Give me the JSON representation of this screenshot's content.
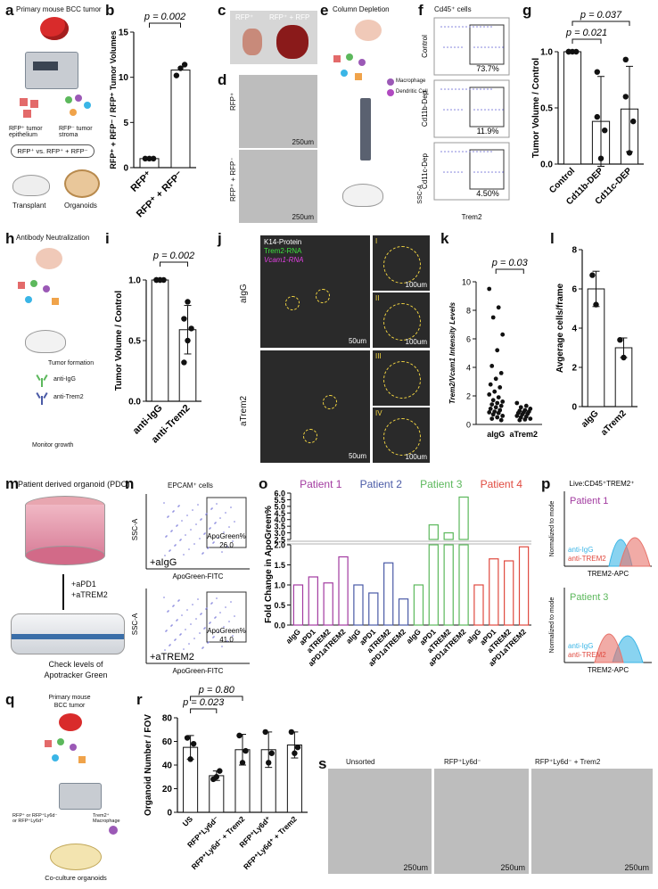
{
  "panels": {
    "a": {
      "letter": "a",
      "title": "Primary mouse BCC tumor",
      "label_epi": "RFP⁺ tumor epithelium",
      "label_stroma": "RFP⁻ tumor stroma",
      "compare": "RFP⁺ vs. RFP⁺ + RFP⁻",
      "transplant": "Transplant",
      "organoids": "Organoids"
    },
    "b": {
      "letter": "b",
      "pvalue": "p = 0.002"
    },
    "c": {
      "letter": "c",
      "label1": "RFP⁺",
      "label2": "RFP⁺ + RFP"
    },
    "d": {
      "letter": "d",
      "row1": "RFP⁺",
      "row2": "RFP⁺ + RFP⁻",
      "scale": "250um"
    },
    "e": {
      "letter": "e",
      "title": "Column Depletion",
      "macrophage": "Macrophage",
      "dendritic": "Dendritic Cell"
    },
    "f": {
      "letter": "f",
      "title": "Cd45⁺ cells",
      "rows": [
        {
          "label": "Control",
          "pct": "73.7%"
        },
        {
          "label": "Cd11b-Dep",
          "pct": "11.9%"
        },
        {
          "label": "Cd11c-Dep",
          "pct": "4.50%"
        }
      ],
      "xaxis": "Trem2",
      "yaxis": "SSC-A"
    },
    "g": {
      "letter": "g",
      "p1": "p = 0.021",
      "p2": "p = 0.037"
    },
    "h": {
      "letter": "h",
      "title": "Antibody Neutralization",
      "tumor_formation": "Tumor formation",
      "anti_igg": "anti-IgG",
      "anti_trem2": "anti-Trem2",
      "monitor": "Monitor growth"
    },
    "i": {
      "letter": "i",
      "pvalue": "p = 0.002"
    },
    "j": {
      "letter": "j",
      "legend1": "K14-Protein",
      "legend2": "Trem2-RNA",
      "legend3": "Vcam1-RNA",
      "row1": "aIgG",
      "row2": "aTrem2",
      "scale1": "50um",
      "scale2": "100um",
      "insets": [
        "I",
        "II",
        "III",
        "IV"
      ]
    },
    "k": {
      "letter": "k",
      "pvalue": "p = 0.03"
    },
    "l": {
      "letter": "l"
    },
    "m": {
      "letter": "m",
      "title": "Patient derived organoid (PDO)",
      "treat1": "+aPD1",
      "treat2": "+aTREM2",
      "check1": "Check levels of",
      "check2": "Apotracker Green"
    },
    "n": {
      "letter": "n",
      "title": "EPCAM⁺ cells",
      "top": {
        "cond": "+aIgG",
        "gate": "ApoGreen%",
        "val": "26.0"
      },
      "bottom": {
        "cond": "+aTREM2",
        "gate": "ApoGreen%",
        "val": "41.0"
      },
      "xaxis": "ApoGreen-FITC",
      "yaxis": "SSC-A"
    },
    "o": {
      "letter": "o",
      "patients": [
        "Patient 1",
        "Patient 2",
        "Patient 3",
        "Patient 4"
      ]
    },
    "p": {
      "letter": "p",
      "title": "Live:CD45⁺TREM2⁺",
      "top_patient": "Patient 1",
      "bottom_patient": "Patient 3",
      "ylabel": "Normalized to mode",
      "xlabel": "TREM2-APC",
      "legend_igg": "anti-IgG",
      "legend_trem2": "anti-TREM2"
    },
    "q": {
      "letter": "q",
      "title1": "Primary mouse",
      "title2": "BCC tumor",
      "label_left": "RFP⁺ or RFP⁺Ly6d⁻ or RFP⁺Ly6d⁺",
      "label_right": "Trem2⁺ Macrophage",
      "coculture": "Co-culture organoids"
    },
    "r": {
      "letter": "r",
      "p1": "p = 0.023",
      "p2": "p = 0.80"
    },
    "s": {
      "letter": "s",
      "labels": [
        "Unsorted",
        "RFP⁺Ly6d⁻",
        "RFP⁺Ly6d⁻ + Trem2"
      ],
      "scale": "250um"
    }
  },
  "chart_data": [
    {
      "id": "b",
      "type": "bar",
      "categories": [
        "RFP⁺",
        "RFP⁺ + RFP⁻"
      ],
      "values": [
        1.0,
        10.8
      ],
      "points": [
        [
          1,
          1,
          1
        ],
        [
          10.2,
          11.0,
          11.4
        ]
      ],
      "ylabel": "RFP⁺ + RFP⁻ / RFP⁺ Tumor Volumes",
      "ylim": [
        0,
        15
      ],
      "yticks": [
        0,
        5,
        10,
        15
      ]
    },
    {
      "id": "g",
      "type": "bar",
      "categories": [
        "Control",
        "Cd11b-DEP",
        "Cd11c-DEP"
      ],
      "values": [
        1.0,
        0.38,
        0.49
      ],
      "errors": [
        0,
        0.4,
        0.38
      ],
      "points": [
        [
          1,
          1,
          1,
          1
        ],
        [
          0.82,
          0.05,
          0.3,
          0.42
        ],
        [
          0.93,
          0.1,
          0.38,
          0.6
        ]
      ],
      "ylabel": "Tumor Volume / Control",
      "ylim": [
        0,
        1.0
      ],
      "yticks": [
        0.0,
        0.5,
        1.0
      ]
    },
    {
      "id": "i",
      "type": "bar",
      "categories": [
        "anti-IgG",
        "anti-Trem2"
      ],
      "values": [
        1.0,
        0.59
      ],
      "errors": [
        0,
        0.2
      ],
      "points": [
        [
          1,
          1,
          1,
          1,
          1
        ],
        [
          0.32,
          0.5,
          0.6,
          0.68,
          0.82
        ]
      ],
      "ylabel": "Tumor Volume / Control",
      "ylim": [
        0,
        1.0
      ],
      "yticks": [
        0.0,
        0.5,
        1.0
      ]
    },
    {
      "id": "k",
      "type": "scatter",
      "categories": [
        "aIgG",
        "aTrem2"
      ],
      "points": [
        [
          9.5,
          8.2,
          7.5,
          6.3,
          5.2,
          4.1,
          3.6,
          3.2,
          2.8,
          2.6,
          2.3,
          2.1,
          1.9,
          1.7,
          1.6,
          1.5,
          1.4,
          1.3,
          1.2,
          1.1,
          1.0,
          0.9,
          0.85,
          0.8,
          0.7,
          0.6,
          0.5,
          0.4,
          0.3
        ],
        [
          1.5,
          1.3,
          1.2,
          1.1,
          1.0,
          0.95,
          0.9,
          0.85,
          0.8,
          0.75,
          0.7,
          0.6,
          0.55,
          0.5,
          0.4,
          0.35,
          0.3
        ]
      ],
      "ylabel": "Trem2/Vcam1 Intensity Levels",
      "ylim": [
        0,
        10
      ],
      "yticks": [
        0,
        2,
        4,
        6,
        8,
        10
      ]
    },
    {
      "id": "l",
      "type": "bar",
      "categories": [
        "aIgG",
        "aTrem2"
      ],
      "values": [
        6.0,
        3.0
      ],
      "errors": [
        0.9,
        0.5
      ],
      "points": [
        [
          6.7,
          5.2
        ],
        [
          3.4,
          2.5
        ]
      ],
      "ylabel": "Avgerage cells/frame",
      "ylim": [
        0,
        8
      ],
      "yticks": [
        0,
        2,
        4,
        6,
        8
      ]
    },
    {
      "id": "o",
      "type": "bar",
      "categories": [
        "aIgG",
        "aPD1",
        "aTREM2",
        "aPD1aTREM2",
        "aIgG",
        "aPD1",
        "aTREM2",
        "aPD1aTREM2",
        "aIgG",
        "aPD1",
        "aTREM2",
        "aPD1aTREM2",
        "aIgG",
        "aPD1",
        "aTREM2",
        "aPD1aTREM2"
      ],
      "values": [
        1.0,
        1.2,
        1.05,
        1.7,
        1.0,
        0.8,
        1.55,
        0.65,
        1.0,
        3.6,
        3.0,
        5.7,
        1.0,
        1.65,
        1.6,
        1.95
      ],
      "colors": [
        "#a23ba0",
        "#a23ba0",
        "#a23ba0",
        "#a23ba0",
        "#4a5aa6",
        "#4a5aa6",
        "#4a5aa6",
        "#4a5aa6",
        "#5cb85c",
        "#5cb85c",
        "#5cb85c",
        "#5cb85c",
        "#e04a3f",
        "#e04a3f",
        "#e04a3f",
        "#e04a3f"
      ],
      "ylabel": "Fold Change in ApoGreen%",
      "yticks": [
        0.0,
        0.5,
        1.0,
        1.5,
        2.0,
        2.5,
        3.0,
        3.5,
        4.0,
        4.5,
        5.0,
        5.5,
        6.0
      ],
      "axis_break": [
        2.0,
        2.5
      ]
    },
    {
      "id": "r",
      "type": "bar",
      "categories": [
        "US",
        "RFP⁺Ly6d⁻",
        "RFP⁺Ly6d⁻ + Trem2",
        "RFP⁺Ly6d⁺",
        "RFP⁺Ly6d⁺ + Trem2"
      ],
      "values": [
        55,
        31,
        53,
        53,
        57
      ],
      "errors": [
        10,
        4,
        13,
        15,
        11
      ],
      "points": [
        [
          63,
          45,
          58
        ],
        [
          28,
          30,
          35
        ],
        [
          65,
          42,
          52
        ],
        [
          68,
          42,
          50
        ],
        [
          68,
          50,
          55
        ]
      ],
      "ylabel": "Organoid Number / FOV",
      "ylim": [
        0,
        80
      ],
      "yticks": [
        0,
        20,
        40,
        60,
        80
      ]
    }
  ],
  "colors": {
    "purple": "#a23ba0",
    "blue": "#4a5aa6",
    "green": "#5cb85c",
    "red": "#e04a3f",
    "cyan": "#3ab5e6",
    "salmon": "#e8736a",
    "gate": "#333333"
  }
}
